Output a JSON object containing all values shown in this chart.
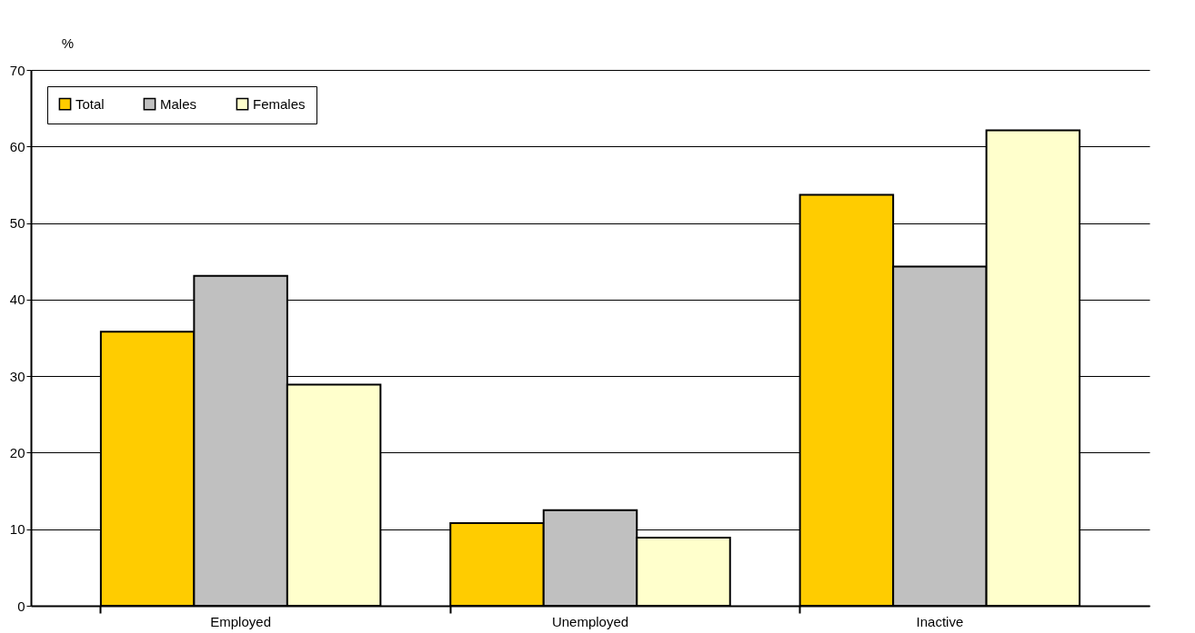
{
  "chart_data": {
    "type": "bar",
    "ylabel": "%",
    "categories": [
      "Employed",
      "Unemployed",
      "Inactive"
    ],
    "series": [
      {
        "name": "Total",
        "color": "#ffcc00",
        "values": [
          35.8,
          10.8,
          53.7
        ]
      },
      {
        "name": "Males",
        "color": "#c0c0c0",
        "values": [
          43.1,
          12.5,
          44.3
        ]
      },
      {
        "name": "Females",
        "color": "#ffffcc",
        "values": [
          28.9,
          8.9,
          62.1
        ]
      }
    ],
    "ylim": [
      0,
      70
    ],
    "yticks": [
      0,
      10,
      20,
      30,
      40,
      50,
      60,
      70
    ],
    "grid": "y",
    "legend": "top left"
  }
}
